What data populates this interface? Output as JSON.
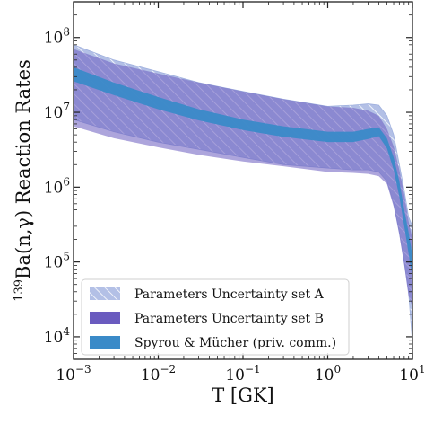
{
  "chart_data": {
    "type": "area",
    "title": "",
    "xlabel": "T [GK]",
    "ylabel": "139Ba(n,γ) Reaction Rates",
    "ylabel_parts": {
      "sup": "139",
      "text": "Ba(n,γ) Reaction Rates"
    },
    "xscale": "log",
    "yscale": "log",
    "xlim": [
      0.001,
      10
    ],
    "ylim": [
      5000,
      300000000
    ],
    "x_ticks": [
      {
        "base": "10",
        "exp": "−3",
        "value": 0.001
      },
      {
        "base": "10",
        "exp": "−2",
        "value": 0.01
      },
      {
        "base": "10",
        "exp": "−1",
        "value": 0.1
      },
      {
        "base": "10",
        "exp": "0",
        "value": 1
      },
      {
        "base": "10",
        "exp": "1",
        "value": 10
      }
    ],
    "y_ticks": [
      {
        "base": "10",
        "exp": "4",
        "value": 10000
      },
      {
        "base": "10",
        "exp": "5",
        "value": 100000
      },
      {
        "base": "10",
        "exp": "6",
        "value": 1000000
      },
      {
        "base": "10",
        "exp": "7",
        "value": 10000000
      },
      {
        "base": "10",
        "exp": "8",
        "value": 100000000
      }
    ],
    "grid": false,
    "legend_position": "lower-left",
    "series": [
      {
        "name": "Parameters Uncertainty set A",
        "style": "hatched",
        "color": "#aab8e0",
        "hatch_color": "#ffffff",
        "x": [
          0.001,
          0.003,
          0.01,
          0.03,
          0.1,
          0.3,
          1,
          2,
          3,
          4,
          5,
          6,
          7,
          8,
          9,
          10
        ],
        "upper": [
          80000000,
          50000000,
          35000000,
          25000000,
          19000000,
          15000000,
          12000000,
          12500000,
          13000000,
          12500000,
          9000000,
          5000000,
          2000000,
          900000,
          400000,
          300000
        ],
        "lower": [
          8000000,
          5500000,
          4000000,
          3200000,
          2500000,
          2000000,
          1800000,
          1700000,
          1700000,
          1600000,
          1200000,
          600000,
          250000,
          100000,
          40000,
          8000
        ]
      },
      {
        "name": "Parameters Uncertainty set B",
        "style": "solid",
        "color": "#6a5bbf",
        "x": [
          0.001,
          0.003,
          0.01,
          0.03,
          0.1,
          0.3,
          1,
          2,
          3,
          4,
          5,
          6,
          7,
          8,
          9,
          10
        ],
        "upper": [
          70000000,
          45000000,
          33000000,
          25000000,
          19000000,
          15000000,
          12000000,
          11500000,
          10500000,
          9000000,
          6000000,
          3500000,
          1700000,
          800000,
          350000,
          200000
        ],
        "lower": [
          6500000,
          4500000,
          3400000,
          2700000,
          2200000,
          1900000,
          1600000,
          1550000,
          1500000,
          1400000,
          1100000,
          550000,
          230000,
          90000,
          35000,
          25000
        ]
      },
      {
        "name": "Spyrou & Mücher (priv. comm.)",
        "style": "solid",
        "color": "#3a8ac8",
        "x": [
          0.001,
          0.003,
          0.01,
          0.03,
          0.1,
          0.3,
          1,
          2,
          3,
          4,
          5,
          6,
          7,
          8,
          9,
          10
        ],
        "upper": [
          40000000,
          25000000,
          16000000,
          11000000,
          8000000,
          6500000,
          5500000,
          5500000,
          6000000,
          6300000,
          4500000,
          2500000,
          1200000,
          500000,
          250000,
          120000
        ],
        "lower": [
          26000000,
          17000000,
          11000000,
          7800000,
          5800000,
          4700000,
          4000000,
          4000000,
          4400000,
          4800000,
          3300000,
          1700000,
          750000,
          300000,
          130000,
          60000
        ]
      }
    ]
  }
}
